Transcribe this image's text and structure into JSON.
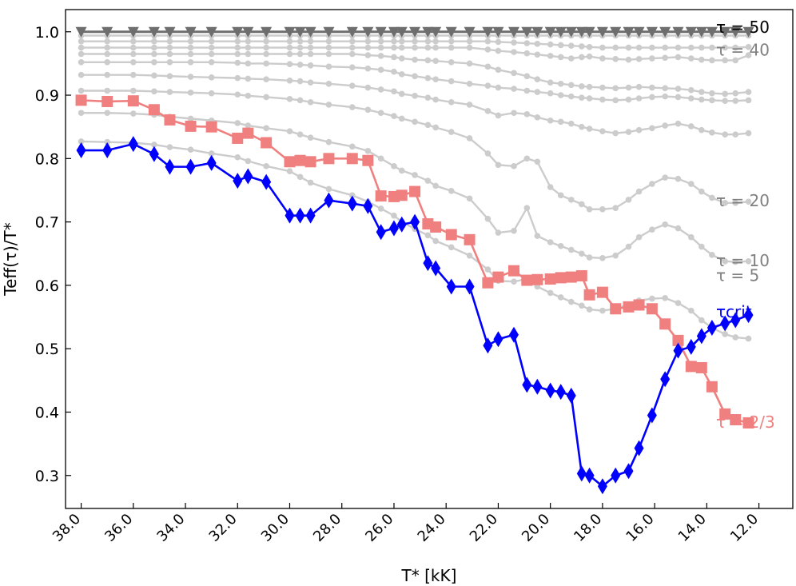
{
  "chart_data": {
    "type": "line",
    "xlabel": "T* [kK]",
    "ylabel": "Teff(τ)/T*",
    "x_reversed": true,
    "xlim": [
      38.6,
      10.7
    ],
    "ylim": [
      0.248,
      1.035
    ],
    "x_ticks": [
      38.0,
      36.0,
      34.0,
      32.0,
      30.0,
      28.0,
      26.0,
      24.0,
      22.0,
      20.0,
      18.0,
      16.0,
      14.0,
      12.0
    ],
    "x_tick_labels": [
      "38.0",
      "36.0",
      "34.0",
      "32.0",
      "30.0",
      "28.0",
      "26.0",
      "24.0",
      "22.0",
      "20.0",
      "18.0",
      "16.0",
      "14.0",
      "12.0"
    ],
    "y_ticks": [
      0.3,
      0.4,
      0.5,
      0.6,
      0.7,
      0.8,
      0.9,
      1.0
    ],
    "y_tick_labels": [
      "0.3",
      "0.4",
      "0.5",
      "0.6",
      "0.7",
      "0.8",
      "0.9",
      "1.0"
    ],
    "grid": false,
    "x": [
      38.0,
      37.0,
      36.0,
      35.2,
      34.6,
      33.8,
      33.0,
      32.0,
      31.6,
      30.9,
      30.0,
      29.6,
      29.2,
      28.5,
      27.6,
      27.0,
      26.5,
      26.0,
      25.7,
      25.2,
      24.7,
      24.4,
      23.8,
      23.1,
      22.4,
      22.0,
      21.4,
      20.9,
      20.5,
      20.0,
      19.6,
      19.2,
      18.8,
      18.5,
      18.0,
      17.5,
      17.0,
      16.6,
      16.1,
      15.6,
      15.1,
      14.6,
      14.2,
      13.8,
      13.3,
      12.9,
      12.4
    ],
    "series": [
      {
        "name": "τ = 50",
        "label_text": "τ = 50",
        "color": "#6e6e6e",
        "label_color": "#000000",
        "marker": "triangle-down",
        "values": [
          1.0,
          1.0,
          1.0,
          1.0,
          1.0,
          1.0,
          1.0,
          1.0,
          1.0,
          1.0,
          1.0,
          1.0,
          1.0,
          1.0,
          1.0,
          1.0,
          1.0,
          1.0,
          1.0,
          1.0,
          1.0,
          1.0,
          1.0,
          1.0,
          1.0,
          1.0,
          1.0,
          1.0,
          1.0,
          1.0,
          1.0,
          1.0,
          1.0,
          1.0,
          1.0,
          1.0,
          1.0,
          1.0,
          1.0,
          1.0,
          1.0,
          1.0,
          1.0,
          1.0,
          1.0,
          1.0,
          1.0
        ]
      },
      {
        "name": "τ = 40",
        "label_text": "τ = 40",
        "color": "#cccccc",
        "label_color": "#808080",
        "marker": "dot",
        "values": [
          0.994,
          0.994,
          0.994,
          0.994,
          0.994,
          0.994,
          0.994,
          0.994,
          0.994,
          0.994,
          0.994,
          0.994,
          0.994,
          0.994,
          0.994,
          0.994,
          0.994,
          0.994,
          0.994,
          0.994,
          0.994,
          0.994,
          0.994,
          0.994,
          0.994,
          0.994,
          0.994,
          0.994,
          0.994,
          0.994,
          0.994,
          0.994,
          0.994,
          0.994,
          0.994,
          0.994,
          0.994,
          0.994,
          0.994,
          0.994,
          0.994,
          0.994,
          0.994,
          0.994,
          0.994,
          0.994,
          0.994
        ]
      },
      {
        "name": "",
        "color": "#cccccc",
        "marker": "dot",
        "values": [
          0.985,
          0.985,
          0.985,
          0.985,
          0.985,
          0.985,
          0.985,
          0.985,
          0.985,
          0.985,
          0.985,
          0.985,
          0.985,
          0.985,
          0.985,
          0.985,
          0.985,
          0.985,
          0.985,
          0.985,
          0.985,
          0.985,
          0.985,
          0.985,
          0.985,
          0.984,
          0.983,
          0.982,
          0.981,
          0.98,
          0.979,
          0.978,
          0.977,
          0.976,
          0.975,
          0.975,
          0.975,
          0.975,
          0.975,
          0.975,
          0.975,
          0.975,
          0.975,
          0.975,
          0.975,
          0.975,
          0.976
        ]
      },
      {
        "name": "",
        "color": "#cccccc",
        "marker": "dot",
        "values": [
          0.975,
          0.975,
          0.975,
          0.975,
          0.975,
          0.975,
          0.975,
          0.975,
          0.975,
          0.975,
          0.975,
          0.975,
          0.975,
          0.975,
          0.975,
          0.975,
          0.975,
          0.975,
          0.975,
          0.975,
          0.975,
          0.975,
          0.975,
          0.975,
          0.972,
          0.97,
          0.968,
          0.966,
          0.964,
          0.962,
          0.96,
          0.958,
          0.96,
          0.961,
          0.958,
          0.957,
          0.956,
          0.957,
          0.958,
          0.959,
          0.96,
          0.958,
          0.956,
          0.955,
          0.955,
          0.955,
          0.963
        ]
      },
      {
        "name": "",
        "color": "#cccccc",
        "marker": "dot",
        "values": [
          0.965,
          0.965,
          0.965,
          0.965,
          0.965,
          0.965,
          0.965,
          0.965,
          0.965,
          0.965,
          0.965,
          0.965,
          0.965,
          0.965,
          0.965,
          0.963,
          0.962,
          0.96,
          0.958,
          0.956,
          0.955,
          0.954,
          0.952,
          0.95,
          0.945,
          0.94,
          0.935,
          0.93,
          0.925,
          0.92,
          0.918,
          0.916,
          0.914,
          0.913,
          0.912,
          0.911,
          0.912,
          0.913,
          0.912,
          0.911,
          0.91,
          0.908,
          0.905,
          0.903,
          0.902,
          0.903,
          0.905
        ]
      },
      {
        "name": "",
        "color": "#cccccc",
        "marker": "dot",
        "values": [
          0.952,
          0.952,
          0.952,
          0.952,
          0.952,
          0.952,
          0.952,
          0.951,
          0.95,
          0.95,
          0.949,
          0.948,
          0.947,
          0.945,
          0.944,
          0.942,
          0.94,
          0.937,
          0.933,
          0.93,
          0.927,
          0.925,
          0.922,
          0.918,
          0.915,
          0.912,
          0.91,
          0.907,
          0.905,
          0.903,
          0.9,
          0.898,
          0.896,
          0.895,
          0.893,
          0.892,
          0.893,
          0.895,
          0.897,
          0.898,
          0.897,
          0.895,
          0.893,
          0.892,
          0.891,
          0.891,
          0.892
        ]
      },
      {
        "name": "",
        "color": "#cccccc",
        "marker": "dot",
        "values": [
          0.932,
          0.932,
          0.932,
          0.931,
          0.93,
          0.929,
          0.928,
          0.927,
          0.926,
          0.925,
          0.923,
          0.922,
          0.92,
          0.918,
          0.915,
          0.912,
          0.909,
          0.906,
          0.902,
          0.899,
          0.896,
          0.893,
          0.889,
          0.885,
          0.875,
          0.868,
          0.872,
          0.87,
          0.865,
          0.86,
          0.858,
          0.855,
          0.85,
          0.847,
          0.843,
          0.84,
          0.842,
          0.845,
          0.848,
          0.852,
          0.855,
          0.851,
          0.845,
          0.841,
          0.838,
          0.838,
          0.84
        ]
      },
      {
        "name": "τ = 20",
        "label_text": "τ = 20",
        "color": "#cccccc",
        "label_color": "#808080",
        "marker": "dot",
        "values": [
          0.907,
          0.907,
          0.907,
          0.906,
          0.905,
          0.904,
          0.903,
          0.901,
          0.899,
          0.897,
          0.894,
          0.892,
          0.889,
          0.885,
          0.881,
          0.877,
          0.872,
          0.867,
          0.863,
          0.858,
          0.853,
          0.849,
          0.842,
          0.832,
          0.808,
          0.79,
          0.788,
          0.8,
          0.795,
          0.755,
          0.742,
          0.735,
          0.728,
          0.72,
          0.72,
          0.722,
          0.735,
          0.748,
          0.76,
          0.77,
          0.768,
          0.76,
          0.748,
          0.738,
          0.73,
          0.73,
          0.732
        ]
      },
      {
        "name": "τ = 10",
        "label_text": "τ = 10",
        "color": "#cccccc",
        "label_color": "#808080",
        "marker": "dot",
        "values": [
          0.872,
          0.872,
          0.871,
          0.869,
          0.866,
          0.863,
          0.86,
          0.856,
          0.852,
          0.848,
          0.843,
          0.838,
          0.833,
          0.826,
          0.819,
          0.812,
          0.8,
          0.788,
          0.781,
          0.774,
          0.765,
          0.757,
          0.749,
          0.737,
          0.705,
          0.683,
          0.686,
          0.722,
          0.678,
          0.668,
          0.662,
          0.656,
          0.65,
          0.644,
          0.643,
          0.647,
          0.661,
          0.676,
          0.688,
          0.696,
          0.69,
          0.676,
          0.661,
          0.648,
          0.638,
          0.637,
          0.638
        ]
      },
      {
        "name": "τ = 5",
        "label_text": "τ = 5",
        "color": "#cccccc",
        "label_color": "#808080",
        "marker": "dot",
        "values": [
          0.827,
          0.826,
          0.825,
          0.822,
          0.818,
          0.814,
          0.808,
          0.802,
          0.796,
          0.788,
          0.78,
          0.771,
          0.762,
          0.752,
          0.742,
          0.732,
          0.721,
          0.71,
          0.7,
          0.689,
          0.679,
          0.67,
          0.66,
          0.647,
          0.625,
          0.607,
          0.606,
          0.61,
          0.598,
          0.588,
          0.581,
          0.574,
          0.568,
          0.562,
          0.56,
          0.563,
          0.57,
          0.576,
          0.579,
          0.58,
          0.572,
          0.56,
          0.545,
          0.533,
          0.523,
          0.518,
          0.516
        ]
      },
      {
        "name": "τ = 2/3",
        "label_text": "τ = 2/3",
        "color": "#f08080",
        "label_color": "#f08080",
        "marker": "square",
        "values": [
          0.892,
          0.89,
          0.891,
          0.877,
          0.861,
          0.851,
          0.85,
          0.832,
          0.84,
          0.825,
          0.795,
          0.797,
          0.795,
          0.8,
          0.8,
          0.797,
          0.741,
          0.74,
          0.742,
          0.748,
          0.697,
          0.692,
          0.68,
          0.672,
          0.604,
          0.613,
          0.623,
          0.608,
          0.609,
          0.61,
          0.612,
          0.613,
          0.615,
          0.585,
          0.589,
          0.563,
          0.566,
          0.569,
          0.563,
          0.539,
          0.513,
          0.472,
          0.47,
          0.44,
          0.397,
          0.388,
          0.383
        ]
      },
      {
        "name": "τcrit",
        "label_text": "τcrit",
        "color": "#0000ff",
        "label_color": "#0000ff",
        "marker": "diamond",
        "values": [
          0.813,
          0.813,
          0.823,
          0.807,
          0.787,
          0.787,
          0.793,
          0.765,
          0.772,
          0.763,
          0.71,
          0.71,
          0.71,
          0.734,
          0.729,
          0.725,
          0.684,
          0.69,
          0.696,
          0.7,
          0.635,
          0.627,
          0.598,
          0.598,
          0.505,
          0.515,
          0.522,
          0.443,
          0.44,
          0.434,
          0.432,
          0.426,
          0.303,
          0.3,
          0.283,
          0.3,
          0.307,
          0.343,
          0.395,
          0.452,
          0.497,
          0.503,
          0.52,
          0.533,
          0.54,
          0.545,
          0.553
        ]
      }
    ]
  }
}
